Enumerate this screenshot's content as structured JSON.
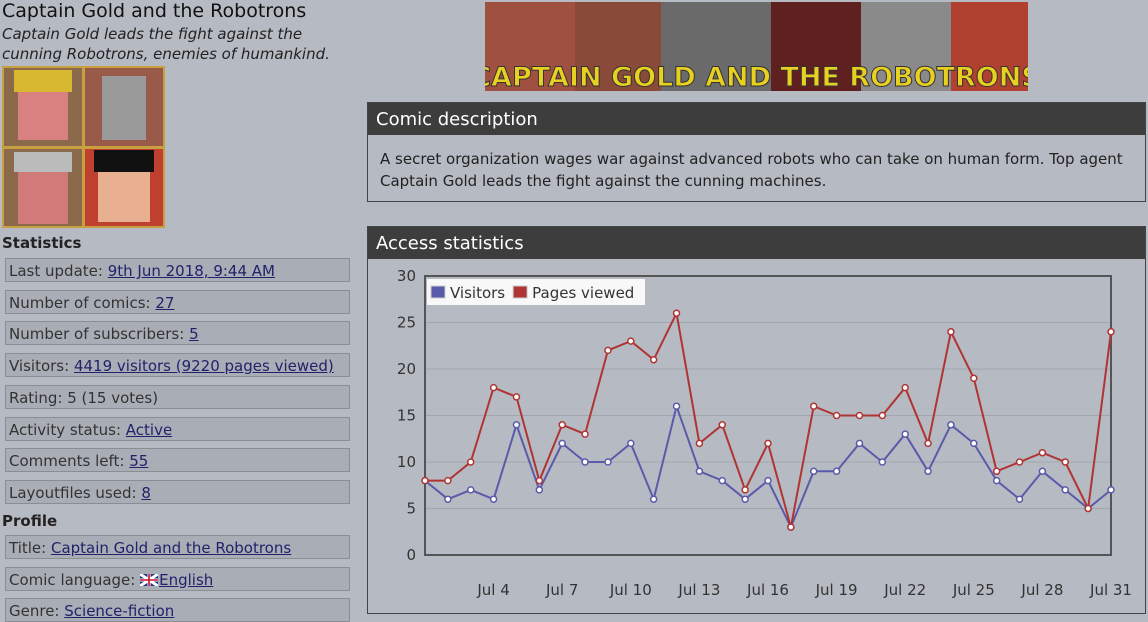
{
  "header": {
    "title": "Captain Gold and the Robotrons",
    "subtitle": "Captain Gold leads the fight against the cunning Robotrons, enemies of humankind.",
    "banner_text": "CAPTAIN GOLD AND THE ROBOTRONS"
  },
  "statistics": {
    "heading": "Statistics",
    "items": [
      {
        "label": "Last update:",
        "link": "9th Jun 2018, 9:44 AM"
      },
      {
        "label": "Number of comics:",
        "link": "27"
      },
      {
        "label": "Number of subscribers:",
        "link": "5"
      },
      {
        "label": "Visitors:",
        "link": "4419 visitors (9220 pages viewed)"
      },
      {
        "label": "Rating:",
        "text": "5 (15 votes)"
      },
      {
        "label": "Activity status:",
        "link": "Active"
      },
      {
        "label": "Comments left:",
        "link": "55"
      },
      {
        "label": "Layoutfiles used:",
        "link": "8"
      }
    ]
  },
  "profile": {
    "heading": "Profile",
    "items": [
      {
        "label": "Title:",
        "link": "Captain Gold and the Robotrons"
      },
      {
        "label": "Comic language:",
        "link": "English"
      },
      {
        "label": "Genre:",
        "link": "Science-fiction"
      }
    ]
  },
  "description": {
    "heading": "Comic description",
    "text": "A secret organization wages war against advanced robots who can take on human form. Top agent Captain Gold leads the fight against the cunning machines."
  },
  "access": {
    "heading": "Access statistics"
  },
  "chart_data": {
    "type": "line",
    "categories": [
      null,
      null,
      null,
      "Jul 4",
      null,
      null,
      "Jul 7",
      null,
      null,
      "Jul 10",
      null,
      null,
      "Jul 13",
      null,
      null,
      "Jul 16",
      null,
      null,
      "Jul 19",
      null,
      null,
      "Jul 22",
      null,
      null,
      "Jul 25",
      null,
      null,
      "Jul 28",
      null,
      null,
      "Jul 31"
    ],
    "series": [
      {
        "name": "Visitors",
        "color": "#5a5aaa",
        "values": [
          8,
          6,
          7,
          6,
          14,
          7,
          12,
          10,
          10,
          12,
          6,
          16,
          9,
          8,
          6,
          8,
          3,
          9,
          9,
          12,
          10,
          13,
          9,
          14,
          12,
          8,
          6,
          9,
          7,
          5,
          7
        ]
      },
      {
        "name": "Pages viewed",
        "color": "#b03434",
        "values": [
          8,
          8,
          10,
          18,
          17,
          8,
          14,
          13,
          22,
          23,
          21,
          26,
          12,
          14,
          7,
          12,
          3,
          16,
          15,
          15,
          15,
          18,
          12,
          24,
          19,
          9,
          10,
          11,
          10,
          5,
          24
        ]
      }
    ],
    "ylim": [
      0,
      30
    ],
    "yticks": [
      0,
      5,
      10,
      15,
      20,
      25,
      30
    ],
    "grid": true,
    "legend": "top-left"
  }
}
